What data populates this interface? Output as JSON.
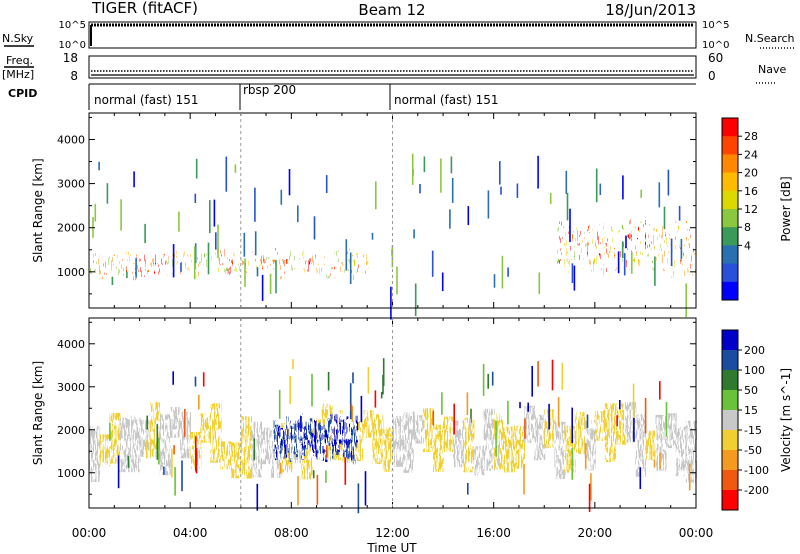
{
  "header": {
    "radar": "TIGER (fitACF)",
    "beam": "Beam 12",
    "date": "18/Jun/2013"
  },
  "top_panels": {
    "nsky_label": "N.Sky",
    "nsky_ticks": [
      "10^5",
      "10^0"
    ],
    "nsearch_label": "N.Search",
    "nsearch_ticks": [
      "10^5",
      "10^0"
    ],
    "freq_label": "Freq.",
    "freq_unit": "[MHz]",
    "freq_ticks": [
      "18",
      "8"
    ],
    "nave_label": "Nave",
    "nave_ticks": [
      "60",
      "0"
    ],
    "cpid_label": "CPID",
    "cpid_segments": [
      "normal (fast) 151",
      "rbsp 200",
      "normal (fast) 151"
    ]
  },
  "chart_data": [
    {
      "type": "heatmap",
      "title": "",
      "ylabel": "Slant Range [km]",
      "xlabel": "",
      "ylim": [
        180,
        4600
      ],
      "yticks": [
        "1000",
        "2000",
        "3000",
        "4000"
      ],
      "xlim_hours": [
        0,
        24
      ],
      "colorbar": {
        "label": "Power [dB]",
        "ticks": [
          "28",
          "24",
          "20",
          "16",
          "12",
          "8",
          "4"
        ],
        "colors": [
          "#ff0000",
          "#ff4400",
          "#ff8800",
          "#ffbb00",
          "#ddd800",
          "#8ac840",
          "#3a9a5a",
          "#2a70b0",
          "#2850d8",
          "#0000ff"
        ]
      },
      "features": [
        {
          "name": "near-range echo band",
          "x": [
            0,
            11
          ],
          "y": [
            850,
            1500
          ]
        },
        {
          "name": "evening echo band",
          "x": [
            18.5,
            24
          ],
          "y": [
            900,
            2200
          ]
        }
      ]
    },
    {
      "type": "heatmap",
      "title": "",
      "ylabel": "Slant Range [km]",
      "xlabel": "Time UT",
      "ylim": [
        180,
        4600
      ],
      "yticks": [
        "1000",
        "2000",
        "3000",
        "4000"
      ],
      "xticks": [
        "00:00",
        "04:00",
        "08:00",
        "12:00",
        "16:00",
        "20:00",
        "00:00"
      ],
      "xlim_hours": [
        0,
        24
      ],
      "colorbar": {
        "label": "Velocity [m s^-1]",
        "ticks": [
          "200",
          "100",
          "50",
          "15",
          "-15",
          "-50",
          "-100",
          "-200"
        ],
        "colors": [
          "#0000c8",
          "#1a4ca0",
          "#2f7a2f",
          "#6ac23a",
          "#c8c8c8",
          "#f0d030",
          "#f59a20",
          "#f05a10",
          "#ff0000"
        ]
      },
      "features": [
        {
          "name": "mostly low-velocity echoes",
          "x": [
            0,
            24
          ],
          "y": [
            850,
            2600
          ]
        },
        {
          "name": "positive velocity patch",
          "x": [
            7.3,
            10.6
          ],
          "y": [
            1300,
            2300
          ]
        }
      ]
    }
  ]
}
